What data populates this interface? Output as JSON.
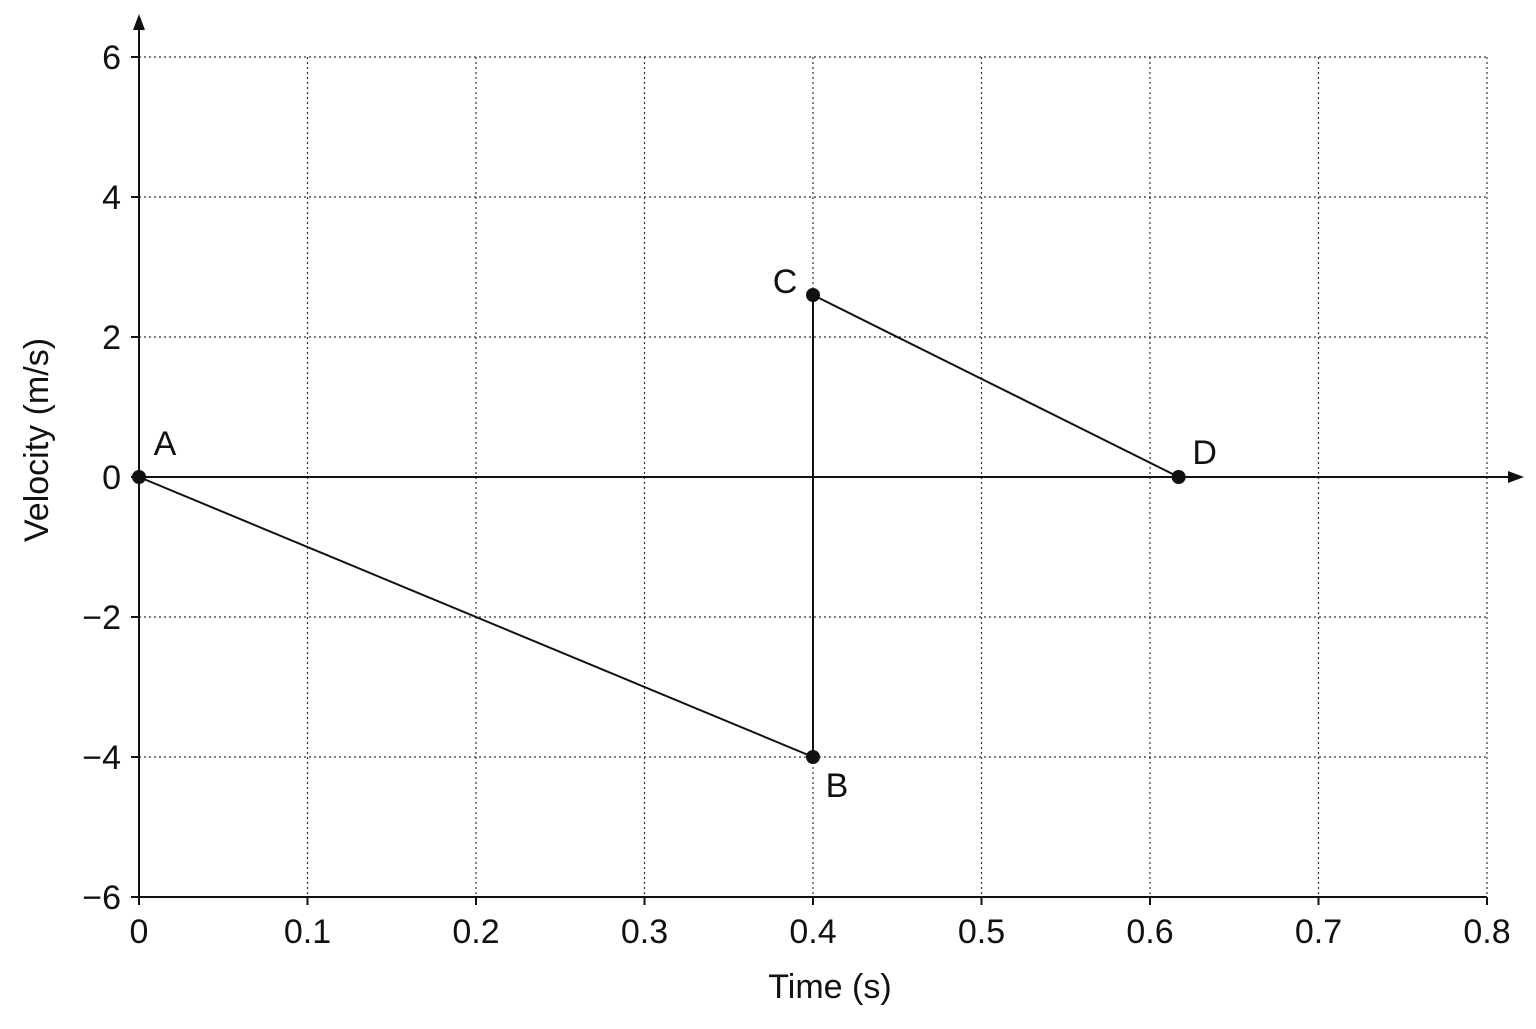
{
  "chart_data": {
    "type": "line",
    "title": "",
    "xlabel": "Time (s)",
    "ylabel": "Velocity (m/s)",
    "xlim": [
      0,
      0.8
    ],
    "ylim": [
      -6,
      6
    ],
    "x_ticks": [
      0,
      0.1,
      0.2,
      0.3,
      0.4,
      0.5,
      0.6,
      0.7,
      0.8
    ],
    "x_tick_labels": [
      "0",
      "0.1",
      "0.2",
      "0.3",
      "0.4",
      "0.5",
      "0.6",
      "0.7",
      "0.8"
    ],
    "y_ticks": [
      6,
      4,
      2,
      0,
      -2,
      -4,
      -6
    ],
    "y_tick_labels": [
      "6",
      "4",
      "2",
      "0",
      "−2",
      "−4",
      "−6"
    ],
    "grid": true,
    "points": [
      {
        "label": "A",
        "x": 0,
        "y": 0
      },
      {
        "label": "B",
        "x": 0.4,
        "y": -4
      },
      {
        "label": "C",
        "x": 0.4,
        "y": 2.6
      },
      {
        "label": "D",
        "x": 0.617,
        "y": 0
      }
    ],
    "segments": [
      {
        "from": "A",
        "to": "B"
      },
      {
        "from": "B",
        "to": "C"
      },
      {
        "from": "C",
        "to": "D"
      }
    ]
  },
  "colors": {
    "ink": "#111111",
    "grid": "#333333",
    "background": "#ffffff"
  }
}
